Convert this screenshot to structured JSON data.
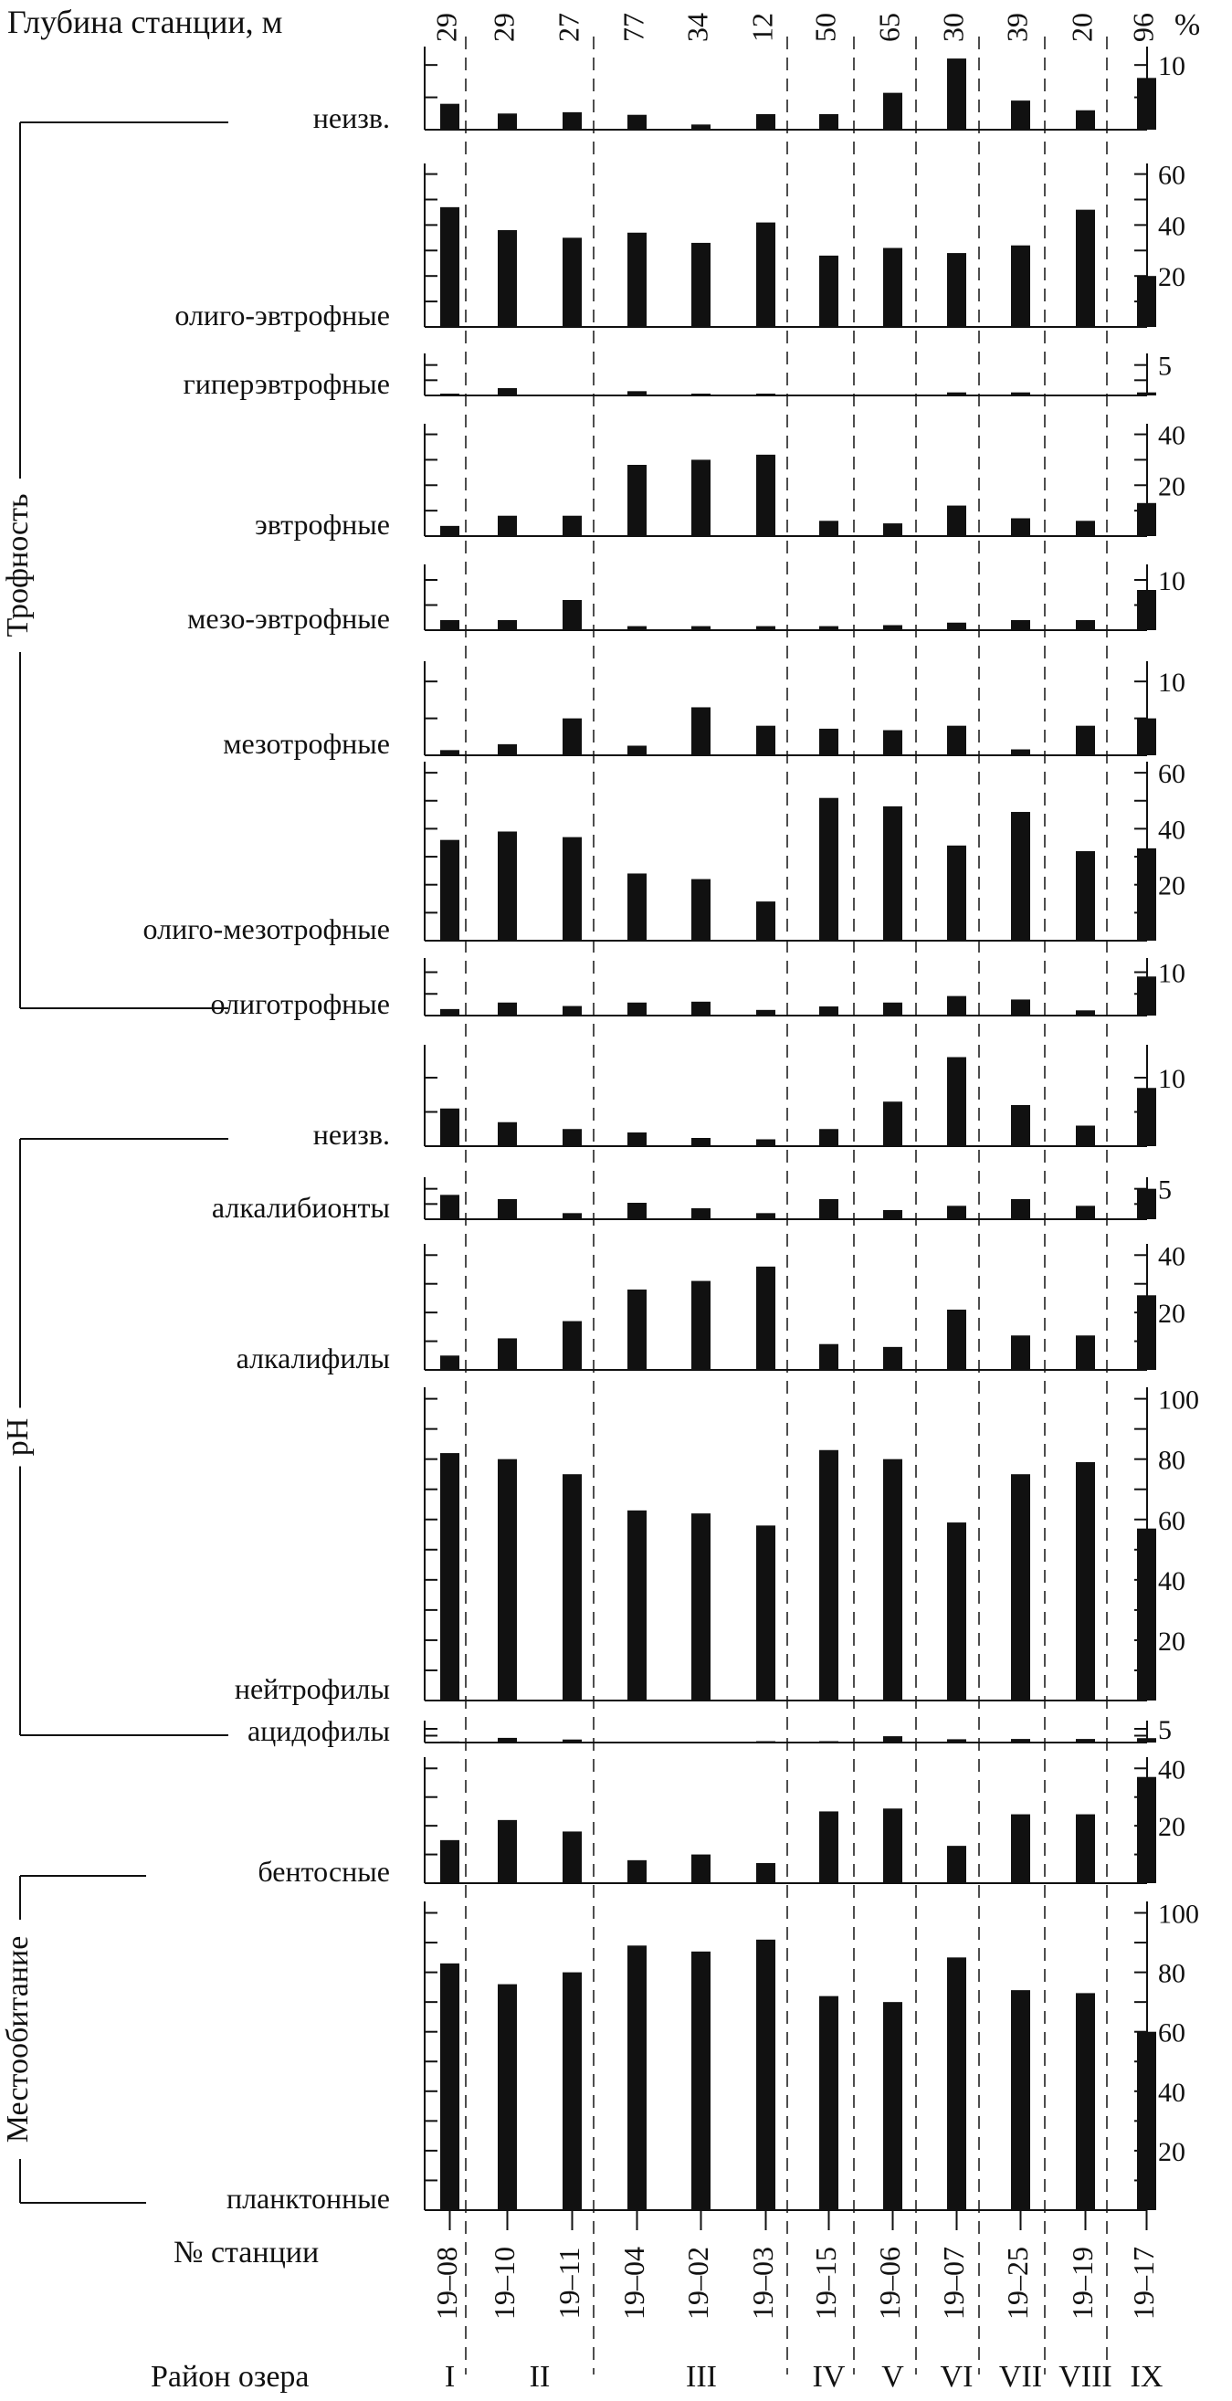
{
  "chart_data": {
    "type": "bar",
    "header": {
      "depth_label": "Глубина станции, м",
      "percent_label": "%"
    },
    "stations": [
      "19–08",
      "19–10",
      "19–11",
      "19–04",
      "19–02",
      "19–03",
      "19–15",
      "19–06",
      "19–07",
      "19–25",
      "19–19",
      "19–17"
    ],
    "depths": [
      "29",
      "29",
      "27",
      "77",
      "34",
      "12",
      "50",
      "65",
      "30",
      "39",
      "20",
      "96"
    ],
    "station_title": "№ станции",
    "region_title": "Район озера",
    "regions": [
      {
        "label": "I",
        "stations": 1
      },
      {
        "label": "II",
        "stations": 2
      },
      {
        "label": "III",
        "stations": 3
      },
      {
        "label": "IV",
        "stations": 1
      },
      {
        "label": "V",
        "stations": 1
      },
      {
        "label": "VI",
        "stations": 1
      },
      {
        "label": "VII",
        "stations": 1
      },
      {
        "label": "VIII",
        "stations": 1
      },
      {
        "label": "IX",
        "stations": 1
      }
    ],
    "groups": [
      {
        "label": "Трофность",
        "first_panel": 0,
        "last_panel": 7
      },
      {
        "label": "pH",
        "first_panel": 8,
        "last_panel": 12
      },
      {
        "label": "Местообитание",
        "first_panel": 13,
        "last_panel": 14
      }
    ],
    "bar_color": "#111111",
    "panels": [
      {
        "name": "неизв.",
        "ymax": 12,
        "ticks": [
          10
        ],
        "values": [
          4,
          2.5,
          2.7,
          2.3,
          0.8,
          2.4,
          2.4,
          5.7,
          11,
          4.5,
          3,
          8
        ]
      },
      {
        "name": "олиго-эвтрофные",
        "ymax": 62,
        "ticks": [
          20,
          40,
          60
        ],
        "values": [
          47,
          38,
          35,
          37,
          33,
          41,
          28,
          31,
          29,
          32,
          46,
          20
        ]
      },
      {
        "name": "гиперэвтрофные",
        "ymax": 6,
        "ticks": [
          5
        ],
        "values": [
          0.3,
          1.2,
          0,
          0.7,
          0.3,
          0.3,
          0,
          0,
          0.5,
          0.5,
          0,
          0.5
        ]
      },
      {
        "name": "эвтрофные",
        "ymax": 42,
        "ticks": [
          20,
          40
        ],
        "values": [
          4,
          8,
          8,
          28,
          30,
          32,
          6,
          5,
          12,
          7,
          6,
          13
        ]
      },
      {
        "name": "мезо-эвтрофные",
        "ymax": 12,
        "ticks": [
          10
        ],
        "values": [
          2,
          2,
          6,
          0.8,
          0.8,
          0.8,
          0.8,
          1,
          1.5,
          2,
          2,
          8
        ]
      },
      {
        "name": "мезотрофные",
        "ymax": 12,
        "ticks": [
          10
        ],
        "values": [
          0.7,
          1.5,
          5,
          1.3,
          6.5,
          4,
          3.6,
          3.4,
          4,
          0.8,
          4,
          5
        ]
      },
      {
        "name": "олиго-мезотрофные",
        "ymax": 62,
        "ticks": [
          20,
          40,
          60
        ],
        "values": [
          36,
          39,
          37,
          24,
          22,
          14,
          51,
          48,
          34,
          46,
          32,
          33
        ]
      },
      {
        "name": "олиготрофные",
        "ymax": 12,
        "ticks": [
          10
        ],
        "values": [
          1.5,
          3,
          2.2,
          3,
          3.2,
          1.3,
          2.1,
          3,
          4.5,
          3.7,
          1.2,
          9
        ]
      },
      {
        "name": "неизв.",
        "ymax": 14,
        "ticks": [
          10
        ],
        "values": [
          5.5,
          3.5,
          2.5,
          2,
          1.2,
          1,
          2.5,
          6.5,
          13,
          6,
          3,
          8.5
        ]
      },
      {
        "name": "алкалибионты",
        "ymax": 6,
        "ticks": [
          5
        ],
        "values": [
          4,
          3.3,
          1,
          2.7,
          1.8,
          1,
          3.3,
          1.5,
          2.2,
          3.3,
          2.2,
          5
        ]
      },
      {
        "name": "алкалифилы",
        "ymax": 42,
        "ticks": [
          20,
          40
        ],
        "values": [
          5,
          11,
          17,
          28,
          31,
          36,
          9,
          8,
          21,
          12,
          12,
          26
        ]
      },
      {
        "name": "нейтрофилы",
        "ymax": 102,
        "ticks": [
          20,
          40,
          60,
          80,
          100
        ],
        "values": [
          82,
          80,
          75,
          63,
          62,
          58,
          83,
          80,
          59,
          75,
          79,
          57
        ]
      },
      {
        "name": "ацидофилы",
        "ymax": 6,
        "ticks": [
          5
        ],
        "values": [
          0.4,
          1.7,
          1.1,
          0.3,
          0,
          0.5,
          0.5,
          2.3,
          1.2,
          1.3,
          1.3,
          1.6
        ]
      },
      {
        "name": "бентосные",
        "ymax": 42,
        "ticks": [
          20,
          40
        ],
        "values": [
          15,
          22,
          18,
          8,
          10,
          7,
          25,
          26,
          13,
          24,
          24,
          37
        ]
      },
      {
        "name": "планктонные",
        "ymax": 102,
        "ticks": [
          20,
          40,
          60,
          80,
          100
        ],
        "values": [
          83,
          76,
          80,
          89,
          87,
          91,
          72,
          70,
          85,
          74,
          73,
          60
        ]
      }
    ]
  }
}
